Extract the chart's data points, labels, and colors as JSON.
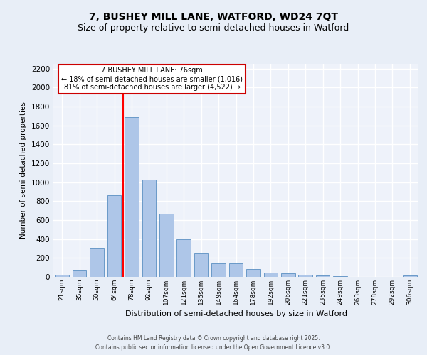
{
  "title_line1": "7, BUSHEY MILL LANE, WATFORD, WD24 7QT",
  "title_line2": "Size of property relative to semi-detached houses in Watford",
  "xlabel": "Distribution of semi-detached houses by size in Watford",
  "ylabel": "Number of semi-detached properties",
  "categories": [
    "21sqm",
    "35sqm",
    "50sqm",
    "64sqm",
    "78sqm",
    "92sqm",
    "107sqm",
    "121sqm",
    "135sqm",
    "149sqm",
    "164sqm",
    "178sqm",
    "192sqm",
    "206sqm",
    "221sqm",
    "235sqm",
    "249sqm",
    "263sqm",
    "278sqm",
    "292sqm",
    "306sqm"
  ],
  "values": [
    20,
    75,
    310,
    860,
    1690,
    1030,
    670,
    395,
    248,
    140,
    140,
    80,
    45,
    35,
    25,
    15,
    8,
    2,
    2,
    2,
    15
  ],
  "bar_color": "#aec6e8",
  "bar_edge_color": "#5a8fc2",
  "red_line_x": 3.5,
  "annotation_line1": "7 BUSHEY MILL LANE: 76sqm",
  "annotation_line2": "← 18% of semi-detached houses are smaller (1,016)",
  "annotation_line3": "81% of semi-detached houses are larger (4,522) →",
  "annotation_box_color": "#ffffff",
  "annotation_box_edge_color": "#cc0000",
  "ylim": [
    0,
    2250
  ],
  "yticks": [
    0,
    200,
    400,
    600,
    800,
    1000,
    1200,
    1400,
    1600,
    1800,
    2000,
    2200
  ],
  "footer_line1": "Contains HM Land Registry data © Crown copyright and database right 2025.",
  "footer_line2": "Contains public sector information licensed under the Open Government Licence v3.0.",
  "background_color": "#e8eef7",
  "plot_bg_color": "#eef2fa",
  "grid_color": "#ffffff",
  "title_fontsize": 10,
  "subtitle_fontsize": 9,
  "bar_width": 0.8
}
